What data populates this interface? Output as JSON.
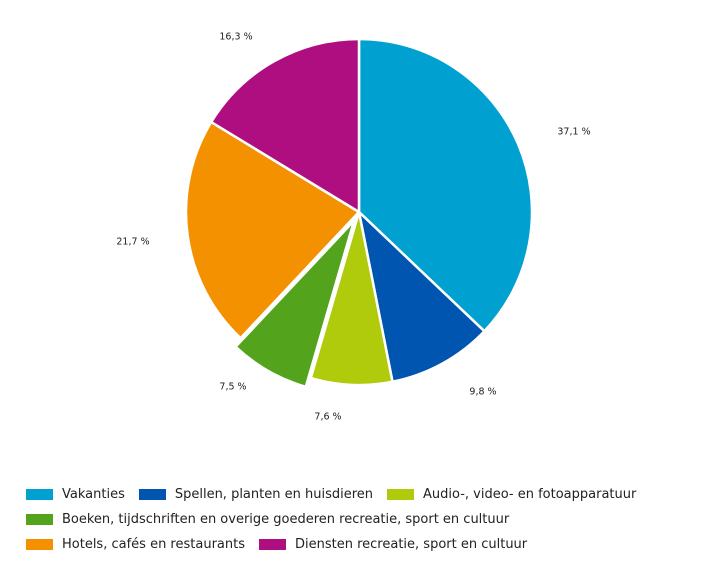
{
  "chart_data": {
    "type": "pie",
    "title": "",
    "slices": [
      {
        "name": "Vakanties",
        "value": 37.1,
        "label": "37,1 %",
        "color": "#00a0d0"
      },
      {
        "name": "Spellen, planten en huisdieren",
        "value": 9.8,
        "label": "9,8 %",
        "color": "#0055b0"
      },
      {
        "name": "Audio-, video- en fotoapparatuur",
        "value": 7.6,
        "label": "7,6 %",
        "color": "#afcb0b"
      },
      {
        "name": "Boeken, tijdschriften en overige goederen recreatie, sport en cultuur",
        "value": 7.5,
        "label": "7,5 %",
        "color": "#53a31d",
        "exploded": true
      },
      {
        "name": "Hotels, cafés en restaurants",
        "value": 21.7,
        "label": "21,7 %",
        "color": "#f39100"
      },
      {
        "name": "Diensten recreatie, sport en cultuur",
        "value": 16.3,
        "label": "16,3 %",
        "color": "#ae0e7f"
      }
    ],
    "start_angle_deg": 0,
    "direction": "clockwise",
    "legend_position": "bottom"
  },
  "legend": {
    "rows": [
      [
        {
          "label": "Vakanties",
          "color": "#00a0d0"
        },
        {
          "label": "Spellen, planten en huisdieren",
          "color": "#0055b0"
        },
        {
          "label": "Audio-, video- en fotoapparatuur",
          "color": "#afcb0b"
        }
      ],
      [
        {
          "label": "Boeken, tijdschriften en overige goederen recreatie, sport en cultuur",
          "color": "#53a31d"
        }
      ],
      [
        {
          "label": "Hotels, cafés en restaurants",
          "color": "#f39100"
        },
        {
          "label": "Diensten recreatie, sport en cultuur",
          "color": "#ae0e7f"
        }
      ]
    ]
  }
}
